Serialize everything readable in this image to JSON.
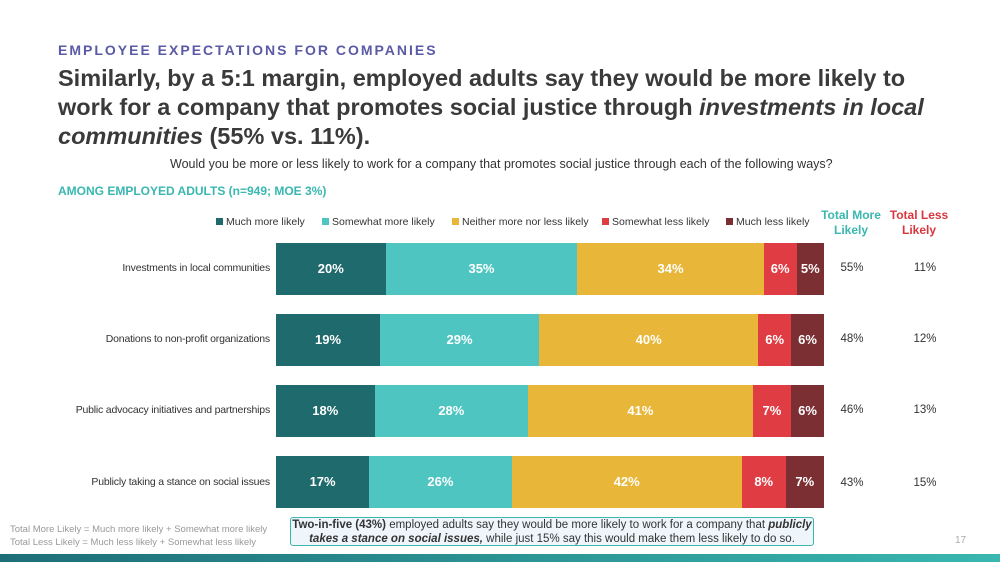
{
  "kicker": "EMPLOYEE EXPECTATIONS FOR COMPANIES",
  "headline": {
    "part1": "Similarly, by a 5:1 margin, employed adults say they would be more likely to work for a company that promotes social justice through ",
    "emphasis": "investments in local communities",
    "part2": " (55% vs. 11%)."
  },
  "question": "Would you be more or less likely to work for a company that promotes social justice through each of the following ways?",
  "base_label": "AMONG EMPLOYED ADULTS (n=949; MOE 3%)",
  "colors": {
    "much_more": "#1f6a6d",
    "somewhat_more": "#4ec5c1",
    "neither": "#e8b73a",
    "somewhat_less": "#e03c43",
    "much_less": "#7b2f33",
    "total_more_head": "#39b7b0",
    "total_less_head": "#d9363e"
  },
  "column_heads": {
    "total_more": "Total More Likely",
    "total_less": "Total Less Likely"
  },
  "chart_data": {
    "type": "bar",
    "orientation": "horizontal",
    "stacked": true,
    "categories": [
      "Investments in local communities",
      "Donations to non-profit organizations",
      "Public advocacy initiatives and partnerships",
      "Publicly taking a stance on social issues"
    ],
    "series": [
      {
        "name": "Much more likely",
        "values": [
          20,
          19,
          18,
          17
        ]
      },
      {
        "name": "Somewhat more likely",
        "values": [
          35,
          29,
          28,
          26
        ]
      },
      {
        "name": "Neither more nor less likely",
        "values": [
          34,
          40,
          41,
          42
        ]
      },
      {
        "name": "Somewhat less likely",
        "values": [
          6,
          6,
          7,
          8
        ]
      },
      {
        "name": "Much less likely",
        "values": [
          5,
          6,
          6,
          7
        ]
      }
    ],
    "total_more_likely": [
      "55%",
      "48%",
      "46%",
      "43%"
    ],
    "total_less_likely": [
      "11%",
      "12%",
      "13%",
      "15%"
    ],
    "value_suffix": "%",
    "legend_position": "top"
  },
  "footnotes": [
    "Total More Likely = Much more likely + Somewhat more likely",
    "Total Less Likely = Much less likely + Somewhat less likely"
  ],
  "callout": {
    "lead": "Two-in-five (43%)",
    "text1": " employed adults say they would be more likely to work for a company that ",
    "emphasis": "publicly takes a stance on social issues,",
    "text2": " while just 15% say this would make them less likely to do so."
  },
  "page_number": "17"
}
